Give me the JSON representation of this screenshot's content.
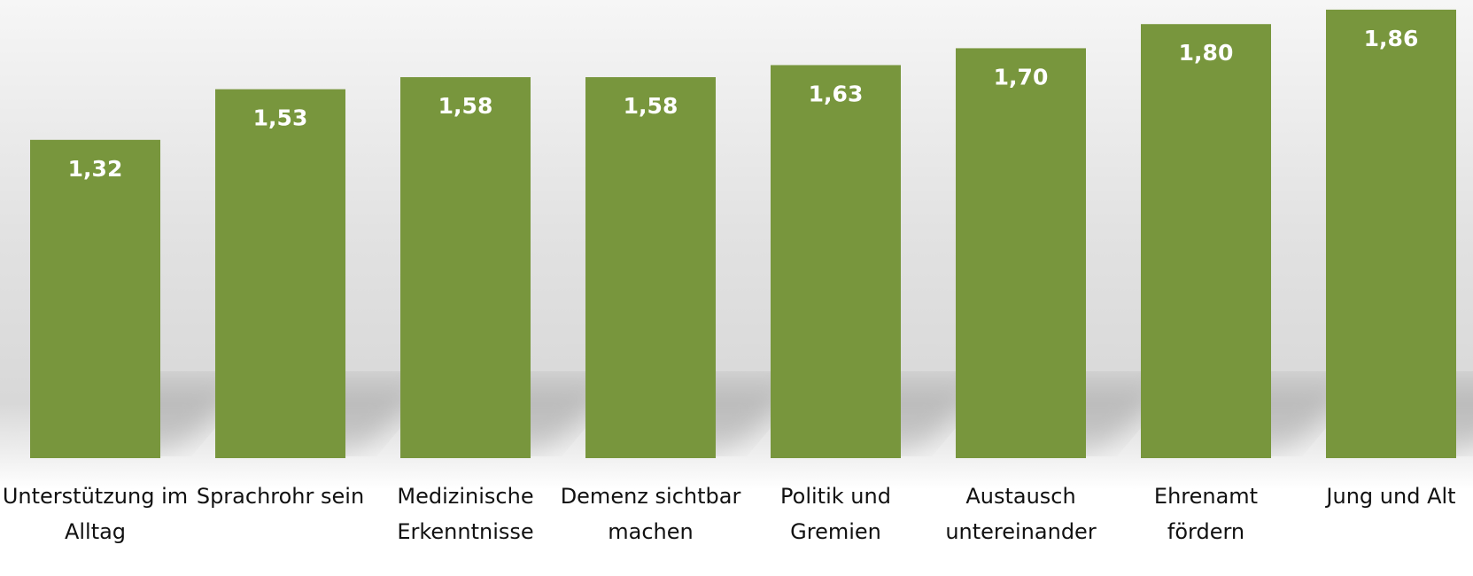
{
  "chart_data": {
    "type": "bar",
    "categories": [
      "Unterstützung im Alltag",
      "Sprachrohr sein",
      "Medizinische Erkenntnisse",
      "Demenz sichtbar machen",
      "Politik und Gremien",
      "Austausch untereinander",
      "Ehrenamt fördern",
      "Jung und Alt"
    ],
    "values": [
      1.32,
      1.53,
      1.58,
      1.58,
      1.63,
      1.7,
      1.8,
      1.86
    ],
    "value_labels": [
      "1,32",
      "1,53",
      "1,58",
      "1,58",
      "1,63",
      "1,70",
      "1,80",
      "1,86"
    ],
    "color": "#78963d",
    "ylim": [
      0,
      1.9
    ]
  }
}
